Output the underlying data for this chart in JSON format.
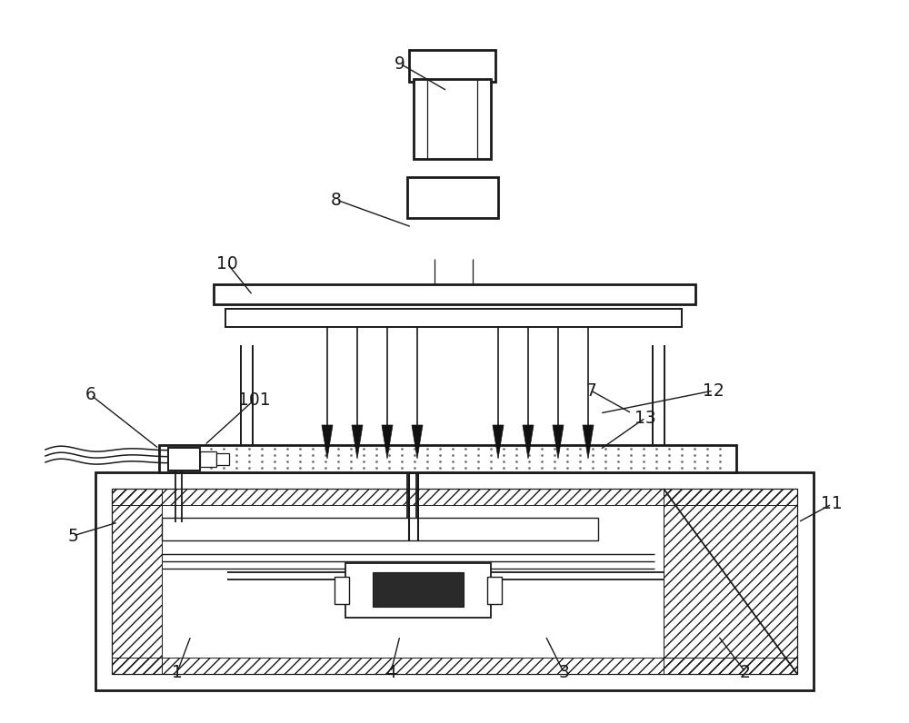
{
  "bg_color": "#ffffff",
  "lc": "#1a1a1a",
  "figsize": [
    10.0,
    7.96
  ],
  "dpi": 100,
  "lw_main": 1.4,
  "lw_thick": 2.0,
  "lw_thin": 0.9
}
